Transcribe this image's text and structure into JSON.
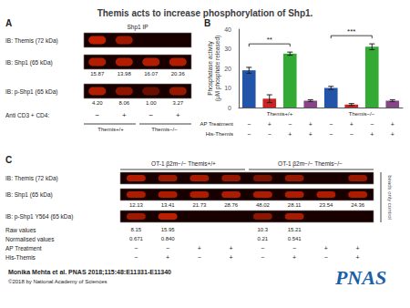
{
  "chart_data": {
    "type": "bar",
    "title": "Themis acts to increase phosphorylation of Shp1.",
    "ylabel": "Phosphatase activity\n(μM phosphate released)",
    "categories": [
      null,
      null,
      null,
      null,
      null,
      null,
      null,
      null
    ],
    "values": [
      19.0,
      4.5,
      27.5,
      3.5,
      10.0,
      1.5,
      31.0,
      3.5
    ],
    "errors": [
      1.5,
      2.0,
      0.8,
      0.5,
      0.8,
      0.5,
      1.5,
      0.5
    ],
    "colors": [
      "#2255aa",
      "#cc2222",
      "#33aa33",
      "#884488",
      "#2255aa",
      "#cc2222",
      "#33aa33",
      "#884488"
    ],
    "ylim": [
      0,
      40
    ],
    "yticks": [
      0,
      10,
      20,
      30,
      40
    ],
    "grid": false,
    "tick_labels": "y",
    "annotations": {
      "significance": [
        "**",
        "***"
      ],
      "groups": [
        "Themis+/+",
        "Themis−/−"
      ],
      "rows": [
        {
          "label": "AP Treatment",
          "values": [
            "−",
            "+",
            "−",
            "+",
            "−",
            "+",
            "−",
            "+"
          ]
        },
        {
          "label": "His-Themis",
          "values": [
            "−",
            "−",
            "+",
            "+",
            "−",
            "−",
            "+",
            "+"
          ]
        }
      ],
      "panel_labels": [
        "A",
        "B",
        "C"
      ],
      "panel_A": {
        "header": "Shp1 IP",
        "rows": [
          {
            "label": "IB: Themis (72 kDa)"
          },
          {
            "label": "IB: Shp1 (65 kDa)",
            "values": [
              "15.87",
              "13.98",
              "16.07",
              "20.36"
            ]
          },
          {
            "label": "IB: p-Shp1 (65 kDa)",
            "values": [
              "4.20",
              "8.06",
              "1.00",
              "3.27"
            ]
          }
        ],
        "stim_label": "Anti CD3 + CD4:",
        "stim": [
          "−",
          "+",
          "−",
          "+"
        ],
        "blot_color": "#180000",
        "band_color": "#cc2200"
      },
      "panel_C": {
        "headers": [
          "OT-1 β2m−/− Themis+/+",
          "OT-1 β2m−/− Themis−/−"
        ],
        "blots": [
          "IB: Themis (72 kDa)",
          "IB: Shp1 (65 kDa)",
          "IB: p-Shp1 Y564 (65 kDa)"
        ],
        "shp1_values": [
          "12.13",
          "13.41",
          "21.73",
          "28.76",
          "48.02",
          "28.11",
          "23.54",
          "24.36"
        ],
        "value_rows": [
          {
            "label": "Raw values",
            "values": [
              "8.15",
              "15.95",
              null,
              null,
              "10.3",
              "15.21",
              null,
              null
            ]
          },
          {
            "label": "Normalised values",
            "values": [
              "0.671",
              "0.840",
              null,
              null,
              "0.21",
              "0.541",
              null,
              null
            ]
          }
        ],
        "rows": [
          {
            "label": "AP Treatment",
            "values": [
              "−",
              "−",
              "+",
              "+",
              "−",
              "−",
              "+",
              "+"
            ]
          },
          {
            "label": "His-Themis",
            "values": [
              "−",
              "+",
              "−",
              "+",
              "−",
              "+",
              "−",
              "+"
            ]
          }
        ],
        "side_note": "beads only control",
        "blot_color": "#180000",
        "band_color": "#cc2200"
      },
      "citation": "Monika Mehta et al. PNAS 2018;115:48:E11331-E11340",
      "copyright": "©2018 by National Academy of Sciences",
      "logo": "PNAS",
      "logo_color": "#1a5fa8"
    }
  }
}
